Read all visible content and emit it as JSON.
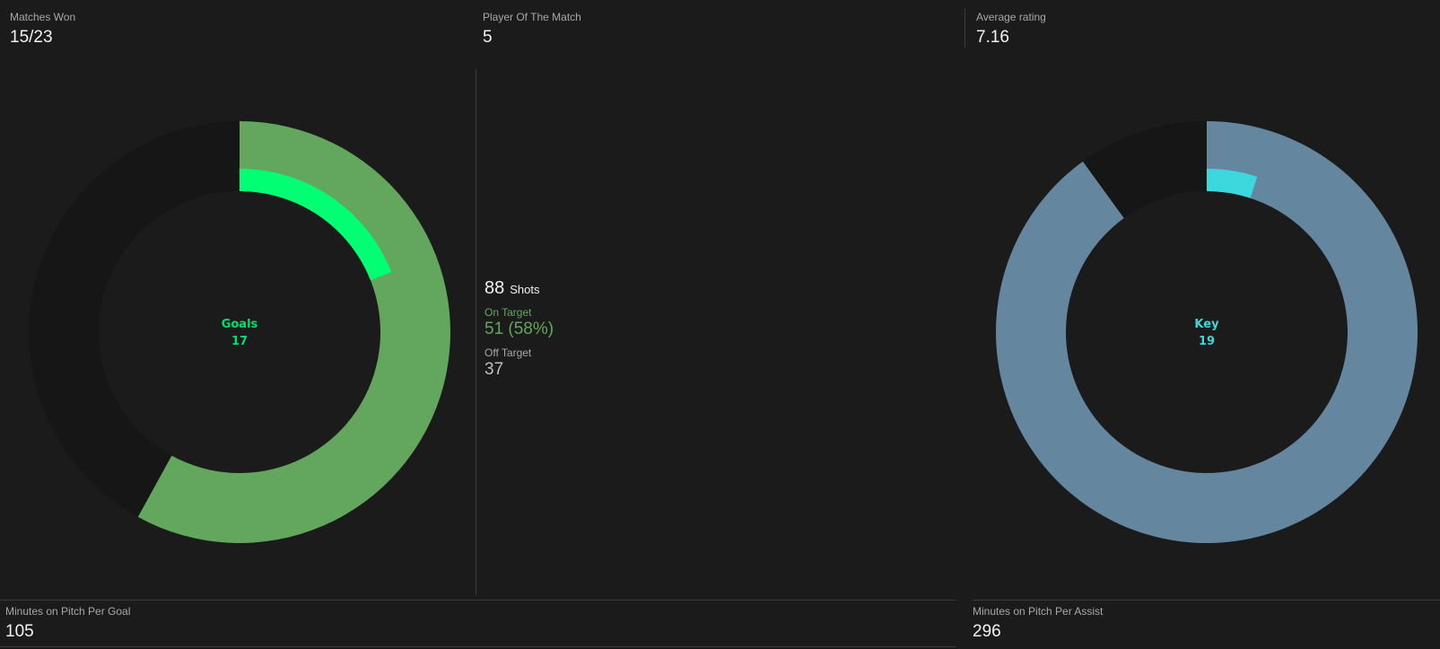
{
  "header": {
    "matches_won": {
      "label": "Matches Won",
      "value": "15/23"
    },
    "player_of_the_match": {
      "label": "Player Of The Match",
      "value": "5"
    },
    "average_rating": {
      "label": "Average rating",
      "value": "7.16"
    }
  },
  "shots": {
    "total": "88",
    "total_label": "Shots",
    "on_target_label": "On Target",
    "on_target_value": "51 (58%)",
    "off_target_label": "Off Target",
    "off_target_value": "37"
  },
  "goals_chart": {
    "center_label": "Goals",
    "center_value": "17",
    "outer_fraction": 0.58,
    "inner_fraction": 0.19,
    "colors": {
      "outer": "#63a65e",
      "inner": "#00ff73",
      "track": "#161616",
      "text": "#00e070"
    }
  },
  "assists_chart": {
    "center_label": "Key",
    "center_value": "19",
    "outer_fraction": 0.9,
    "inner_fraction": 0.05,
    "colors": {
      "outer": "#64879f",
      "inner": "#3cd8de",
      "track": "#161616",
      "text": "#3cd8de"
    }
  },
  "footer": {
    "minutes_per_goal": {
      "label": "Minutes on Pitch Per Goal",
      "value": "105"
    },
    "minutes_per_assist": {
      "label": "Minutes on Pitch Per Assist",
      "value": "296"
    }
  }
}
